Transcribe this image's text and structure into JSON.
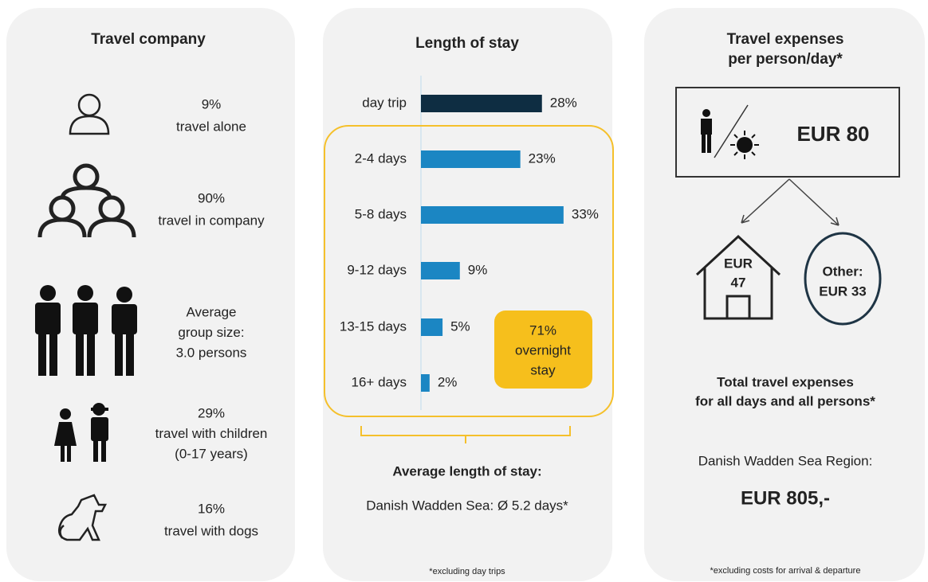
{
  "travel_company": {
    "title": "Travel company",
    "items": [
      {
        "lines": [
          "9%",
          "travel alone"
        ]
      },
      {
        "lines": [
          "90%",
          "travel in company"
        ]
      },
      {
        "lines": [
          "Average",
          "group size:",
          "3.0 persons"
        ]
      },
      {
        "lines": [
          "29%",
          "travel with children",
          "(0-17 years)"
        ]
      },
      {
        "lines": [
          "16%",
          "travel with dogs"
        ]
      }
    ]
  },
  "length_of_stay": {
    "title": "Length of stay",
    "type": "bar",
    "categories": [
      "day trip",
      "2-4 days",
      "5-8 days",
      "9-12 days",
      "13-15 days",
      "16+ days"
    ],
    "values": [
      28,
      23,
      33,
      9,
      5,
      2
    ],
    "value_labels": [
      "28%",
      "23%",
      "33%",
      "9%",
      "5%",
      "2%"
    ],
    "colors": [
      "#0e2d42",
      "#1b86c3",
      "#1b86c3",
      "#1b86c3",
      "#1b86c3",
      "#1b86c3"
    ],
    "overnight": [
      "71%",
      "overnight",
      "stay"
    ],
    "average_heading": "Average length of stay:",
    "average_text": "Danish Wadden Sea: Ø 5.2 days*",
    "footnote": "*excluding day trips"
  },
  "expenses": {
    "title": [
      "Travel expenses",
      "per person/day*"
    ],
    "per_day": "EUR 80",
    "accommodation": [
      "EUR",
      "47"
    ],
    "other": [
      "Other:",
      "EUR 33"
    ],
    "total_heading": [
      "Total travel expenses",
      "for all days and all persons*"
    ],
    "region": "Danish Wadden Sea Region:",
    "total": "EUR 805,-",
    "footnote": "*excluding costs for arrival & departure"
  }
}
